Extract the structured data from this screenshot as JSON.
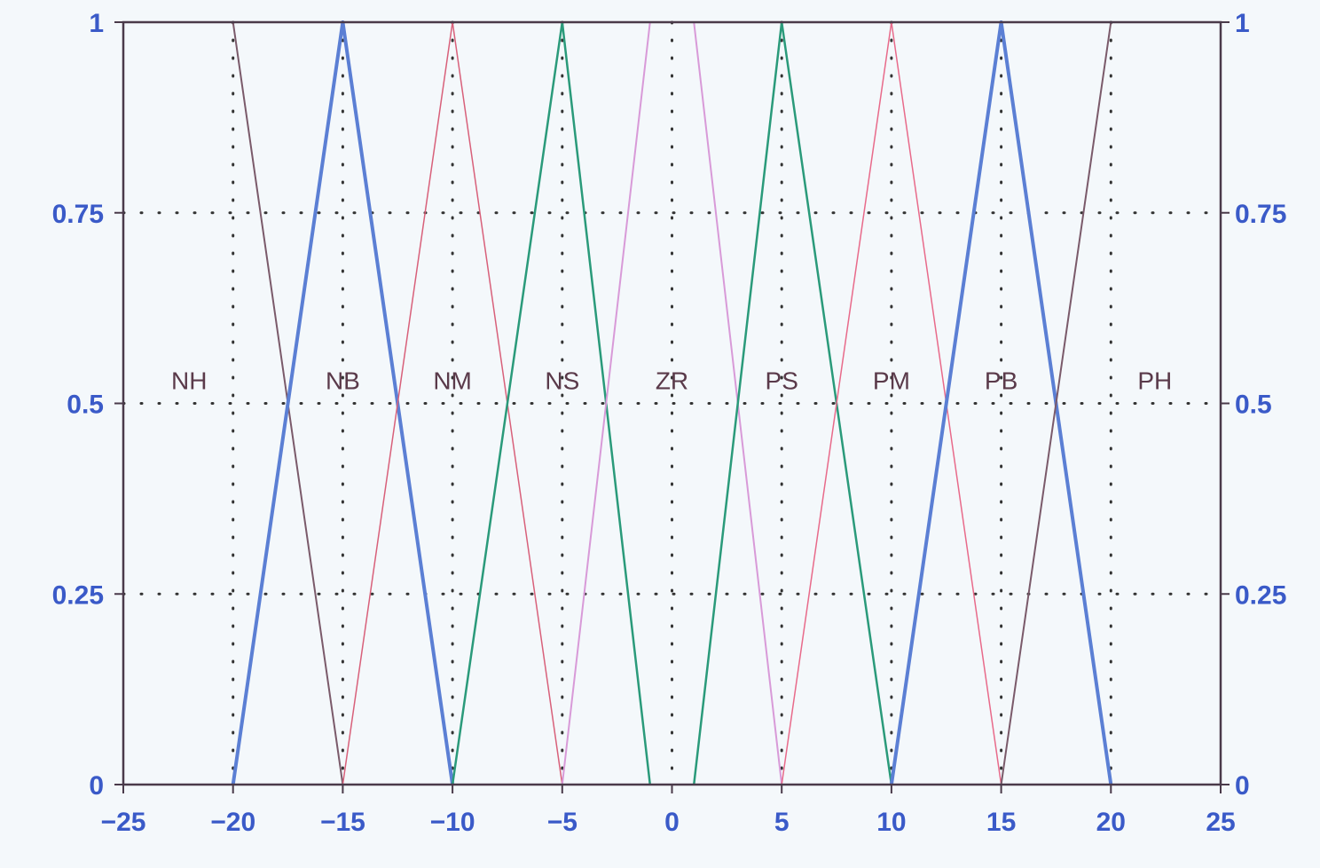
{
  "chart_data": {
    "type": "line",
    "title": "",
    "xlabel": "",
    "ylabel": "",
    "xlim": [
      -25,
      25
    ],
    "ylim": [
      0,
      1
    ],
    "x_ticks": [
      -25,
      -20,
      -15,
      -10,
      -5,
      0,
      5,
      10,
      15,
      20,
      25
    ],
    "x_tick_labels": [
      "−25",
      "−20",
      "−15",
      "−10",
      "−5",
      "0",
      "5",
      "10",
      "15",
      "20",
      "25"
    ],
    "y_ticks": [
      0,
      0.25,
      0.5,
      0.75,
      1
    ],
    "y_tick_labels": [
      "0",
      "0.25",
      "0.5",
      "0.75",
      "1"
    ],
    "grid": "dotted",
    "legend": "none",
    "label_y": 0.53,
    "series": [
      {
        "name": "NH",
        "color": "#7a5a6a",
        "width": 2,
        "label_x": -22,
        "x": [
          -25,
          -20,
          -15
        ],
        "y": [
          1,
          1,
          0
        ]
      },
      {
        "name": "NB",
        "color": "#5b7fd4",
        "width": 4,
        "label_x": -15,
        "x": [
          -20,
          -15,
          -10
        ],
        "y": [
          0,
          1,
          0
        ]
      },
      {
        "name": "NM",
        "color": "#d8607a",
        "width": 1.5,
        "label_x": -10,
        "x": [
          -15,
          -10,
          -5
        ],
        "y": [
          0,
          1,
          0
        ]
      },
      {
        "name": "NS",
        "color": "#2a9a7a",
        "width": 2.5,
        "label_x": -5,
        "x": [
          -10,
          -5,
          -1
        ],
        "y": [
          0,
          1,
          0
        ]
      },
      {
        "name": "ZR",
        "color": "#d89ad8",
        "width": 2,
        "label_x": 0,
        "x": [
          -5,
          -1,
          1,
          5
        ],
        "y": [
          0,
          1,
          1,
          0
        ]
      },
      {
        "name": "PS",
        "color": "#2a9a7a",
        "width": 2.5,
        "label_x": 5,
        "x": [
          1,
          5,
          10
        ],
        "y": [
          0,
          1,
          0
        ]
      },
      {
        "name": "PM",
        "color": "#e86a8a",
        "width": 1.5,
        "label_x": 10,
        "x": [
          5,
          10,
          15
        ],
        "y": [
          0,
          1,
          0
        ]
      },
      {
        "name": "PB",
        "color": "#5b7fd4",
        "width": 4,
        "label_x": 15,
        "x": [
          10,
          15,
          20
        ],
        "y": [
          0,
          1,
          0
        ]
      },
      {
        "name": "PH",
        "color": "#7a5a6a",
        "width": 2,
        "label_x": 22,
        "x": [
          15,
          20,
          25
        ],
        "y": [
          0,
          1,
          1
        ]
      }
    ],
    "colors": {
      "axis": "#4a3a4a",
      "tick_label": "#3a5ac8",
      "set_label": "#5a3a4a",
      "grid": "#333333"
    }
  }
}
